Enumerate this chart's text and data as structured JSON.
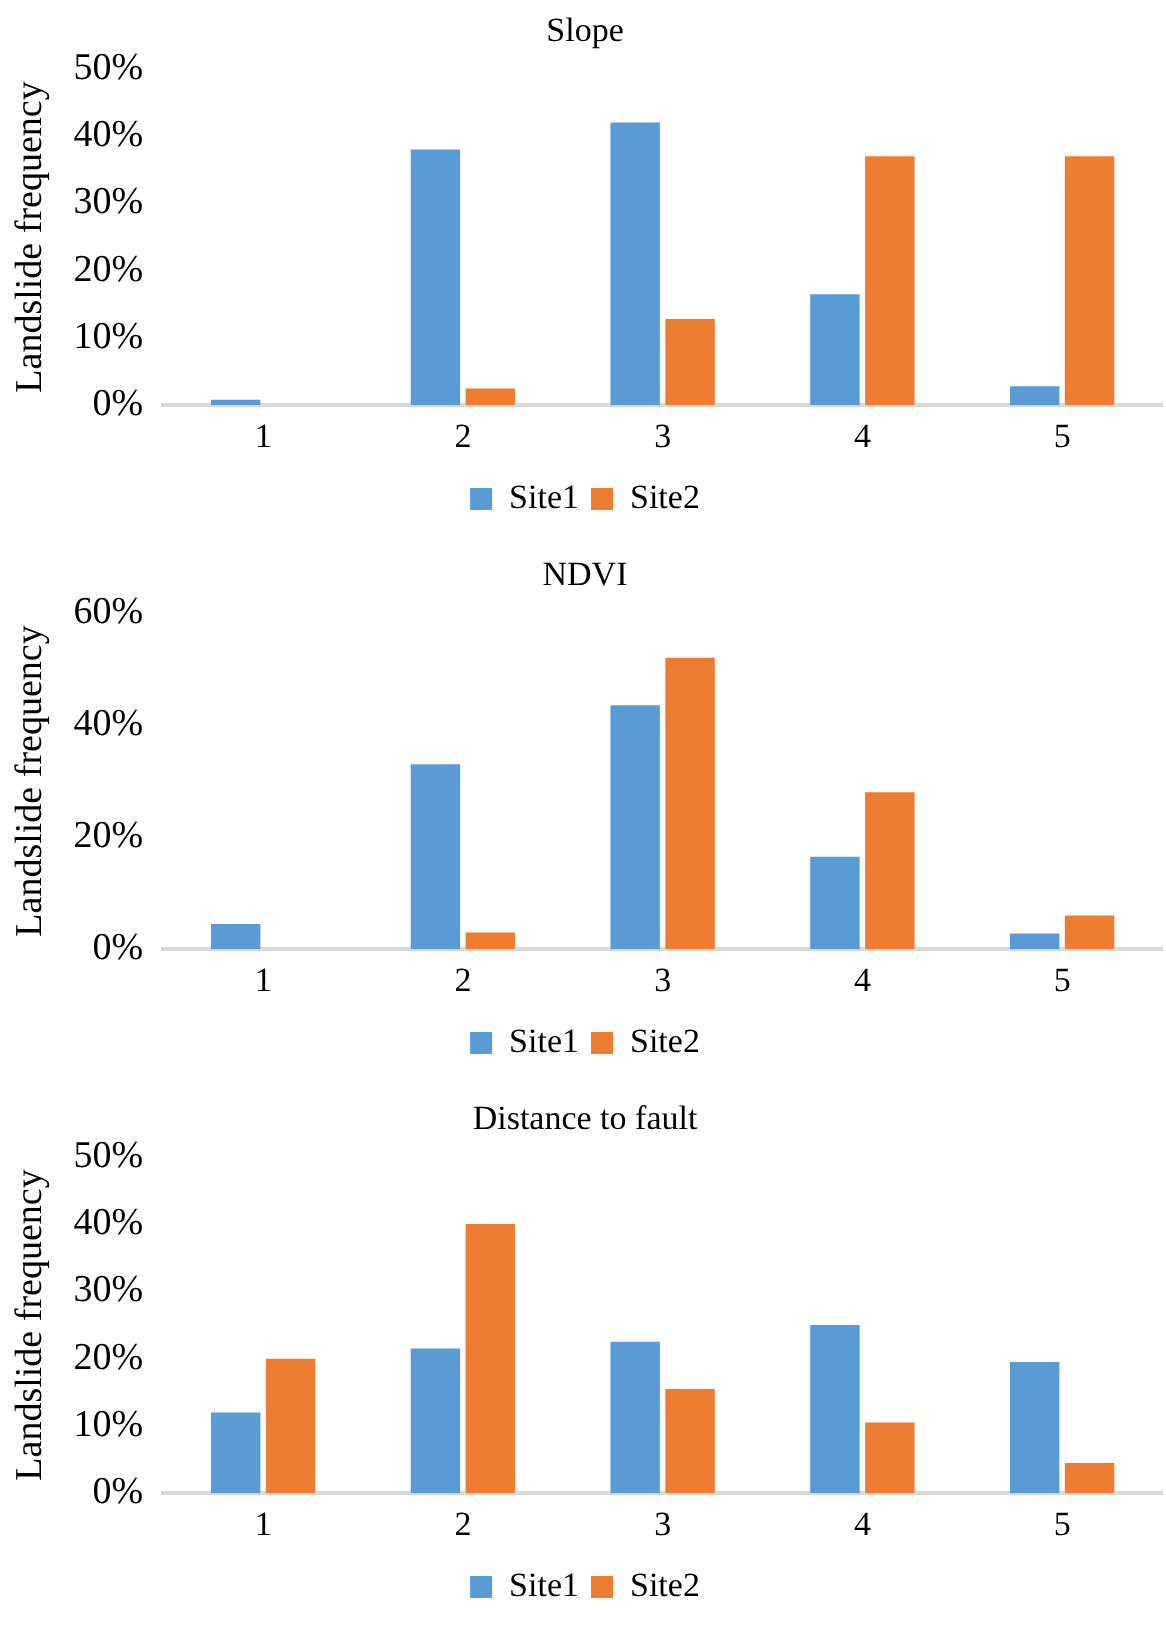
{
  "chart_data": [
    {
      "type": "bar",
      "title": "Slope",
      "ylabel": "Landslide frequency",
      "categories": [
        "1",
        "2",
        "3",
        "4",
        "5"
      ],
      "ylim": [
        0,
        50
      ],
      "yticks": [
        {
          "value": 0,
          "label": "0%"
        },
        {
          "value": 10,
          "label": "10%"
        },
        {
          "value": 20,
          "label": "20%"
        },
        {
          "value": 30,
          "label": "30%"
        },
        {
          "value": 40,
          "label": "40%"
        },
        {
          "value": 50,
          "label": "50%"
        }
      ],
      "grid": false,
      "legend": "bottom",
      "series": [
        {
          "name": "Site1",
          "color": "#5b9bd5",
          "values": [
            0.8,
            38,
            42,
            16.5,
            2.8
          ]
        },
        {
          "name": "Site2",
          "color": "#ed7d31",
          "values": [
            0,
            2.5,
            12.8,
            37,
            37
          ]
        }
      ]
    },
    {
      "type": "bar",
      "title": "NDVI",
      "ylabel": "Landslide frequency",
      "categories": [
        "1",
        "2",
        "3",
        "4",
        "5"
      ],
      "ylim": [
        0,
        60
      ],
      "yticks": [
        {
          "value": 0,
          "label": "0%"
        },
        {
          "value": 20,
          "label": "20%"
        },
        {
          "value": 40,
          "label": "40%"
        },
        {
          "value": 60,
          "label": "60%"
        }
      ],
      "grid": false,
      "legend": "bottom",
      "series": [
        {
          "name": "Site1",
          "color": "#5b9bd5",
          "values": [
            4.5,
            33,
            43.5,
            16.5,
            2.8
          ]
        },
        {
          "name": "Site2",
          "color": "#ed7d31",
          "values": [
            0,
            3,
            52,
            28,
            6
          ]
        }
      ]
    },
    {
      "type": "bar",
      "title": "Distance to fault",
      "ylabel": "Landslide frequency",
      "categories": [
        "1",
        "2",
        "3",
        "4",
        "5"
      ],
      "ylim": [
        0,
        50
      ],
      "yticks": [
        {
          "value": 0,
          "label": "0%"
        },
        {
          "value": 10,
          "label": "10%"
        },
        {
          "value": 20,
          "label": "20%"
        },
        {
          "value": 30,
          "label": "30%"
        },
        {
          "value": 40,
          "label": "40%"
        },
        {
          "value": 50,
          "label": "50%"
        }
      ],
      "grid": false,
      "legend": "bottom",
      "series": [
        {
          "name": "Site1",
          "color": "#5b9bd5",
          "values": [
            12,
            21.5,
            22.5,
            25,
            19.5
          ]
        },
        {
          "name": "Site2",
          "color": "#ed7d31",
          "values": [
            20,
            40,
            15.5,
            10.5,
            4.5
          ]
        }
      ]
    }
  ]
}
